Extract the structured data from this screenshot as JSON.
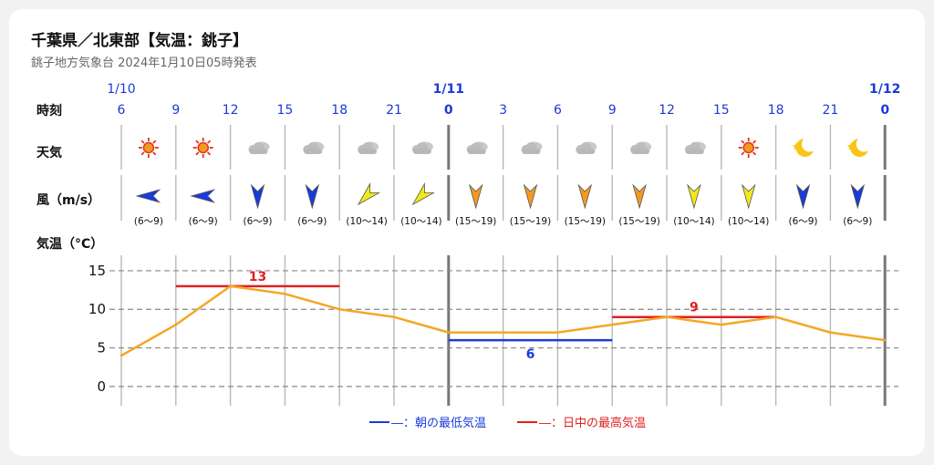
{
  "header": {
    "title": "千葉県／北東部【気温：銚子】",
    "subtitle": "銚子地方気象台 2024年1月10日05時発表"
  },
  "rows": {
    "time": "時刻",
    "weather": "天気",
    "wind": "風（m/s）",
    "temp": "気温（°C）"
  },
  "date_labels": [
    "1/10",
    "1/11",
    "1/12"
  ],
  "hours": [
    "6",
    "9",
    "12",
    "15",
    "18",
    "21",
    "0",
    "3",
    "6",
    "9",
    "12",
    "15",
    "18",
    "21",
    "0"
  ],
  "weather": [
    "sunny-icon",
    "sunny-icon",
    "cloudy-icon",
    "cloudy-icon",
    "cloudy-icon",
    "cloudy-icon",
    "cloudy-icon",
    "cloudy-icon",
    "cloudy-icon",
    "cloudy-icon",
    "cloudy-icon",
    "sunny-icon",
    "moon-icon",
    "moon-icon"
  ],
  "wind": [
    {
      "dir": "E",
      "speed": "(6～9)",
      "color": "#1a3adb"
    },
    {
      "dir": "E",
      "speed": "(6～9)",
      "color": "#1a3adb"
    },
    {
      "dir": "N",
      "speed": "(6～9)",
      "color": "#1a3adb"
    },
    {
      "dir": "N",
      "speed": "(6～9)",
      "color": "#1a3adb"
    },
    {
      "dir": "SW",
      "speed": "(10～14)",
      "color": "#f0ea1a"
    },
    {
      "dir": "SW",
      "speed": "(10～14)",
      "color": "#f0ea1a"
    },
    {
      "dir": "N",
      "speed": "(15～19)",
      "color": "#f39a1e"
    },
    {
      "dir": "N",
      "speed": "(15～19)",
      "color": "#f39a1e"
    },
    {
      "dir": "N",
      "speed": "(15～19)",
      "color": "#f39a1e"
    },
    {
      "dir": "N",
      "speed": "(15～19)",
      "color": "#f39a1e"
    },
    {
      "dir": "N",
      "speed": "(10～14)",
      "color": "#f0ea1a"
    },
    {
      "dir": "N",
      "speed": "(10～14)",
      "color": "#f0ea1a"
    },
    {
      "dir": "N",
      "speed": "(6～9)",
      "color": "#1a3adb"
    },
    {
      "dir": "N",
      "speed": "(6～9)",
      "color": "#1a3adb"
    }
  ],
  "chart_data": {
    "type": "line",
    "x": [
      "1/10 6",
      "9",
      "12",
      "15",
      "18",
      "21",
      "1/11 0",
      "3",
      "6",
      "9",
      "12",
      "15",
      "18",
      "21",
      "1/12 0"
    ],
    "series": [
      {
        "values": [
          4,
          8,
          13,
          12,
          10,
          9,
          7,
          7,
          7,
          8,
          9,
          8,
          9,
          7,
          6
        ],
        "color": "#f5a623"
      }
    ],
    "min_temp": {
      "label": "6",
      "value": 6,
      "from_index": 6,
      "to_index": 9,
      "color": "#1a3adb"
    },
    "max_temps": [
      {
        "label": "13",
        "value": 13,
        "from_index": 1,
        "to_index": 4,
        "color": "#e02020"
      },
      {
        "label": "9",
        "value": 9,
        "from_index": 9,
        "to_index": 12,
        "color": "#e02020"
      }
    ],
    "y_ticks": [
      0,
      5,
      10,
      15
    ],
    "ylim": [
      -2.5,
      17
    ],
    "grid": true
  },
  "legend": {
    "min_label": "―：朝の最低気温",
    "max_label": "―：日中の最高気温",
    "min_color": "#1a3adb",
    "max_color": "#e02020"
  }
}
